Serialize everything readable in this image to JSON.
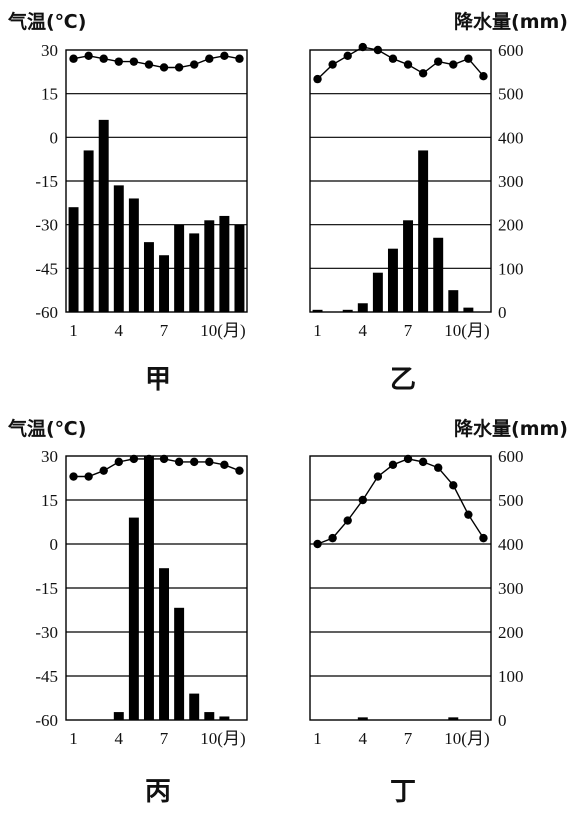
{
  "figure": {
    "left_axis_title": "气温(℃)",
    "right_axis_title": "降水量(mm)",
    "temperature_ticks": [
      "30",
      "15",
      "0",
      "-15",
      "-30",
      "-45",
      "-60"
    ],
    "precipitation_ticks": [
      "600",
      "500",
      "400",
      "300",
      "200",
      "100",
      "0"
    ],
    "month_ticks": [
      "1",
      "4",
      "7",
      "10(月)"
    ]
  },
  "chart_data": [
    {
      "type": "bar",
      "title": "甲",
      "categories": [
        "1",
        "2",
        "3",
        "4",
        "5",
        "6",
        "7",
        "8",
        "9",
        "10",
        "11",
        "12"
      ],
      "temperature_ylim": [
        -60,
        30
      ],
      "precipitation_ylim": [
        0,
        600
      ],
      "temperature": [
        27,
        28,
        27,
        26,
        26,
        25,
        24,
        24,
        25,
        27,
        28,
        27
      ],
      "precipitation": [
        240,
        370,
        440,
        290,
        260,
        160,
        130,
        200,
        180,
        210,
        220,
        200
      ],
      "grid": true
    },
    {
      "type": "bar",
      "title": "乙",
      "categories": [
        "1",
        "2",
        "3",
        "4",
        "5",
        "6",
        "7",
        "8",
        "9",
        "10",
        "11",
        "12"
      ],
      "temperature_ylim": [
        -60,
        30
      ],
      "precipitation_ylim": [
        0,
        600
      ],
      "temperature": [
        20,
        25,
        28,
        31,
        30,
        27,
        25,
        22,
        26,
        25,
        27,
        21
      ],
      "precipitation": [
        5,
        0,
        5,
        20,
        90,
        145,
        210,
        370,
        170,
        50,
        10,
        0
      ],
      "grid": true
    },
    {
      "type": "bar",
      "title": "丙",
      "categories": [
        "1",
        "2",
        "3",
        "4",
        "5",
        "6",
        "7",
        "8",
        "9",
        "10",
        "11",
        "12"
      ],
      "temperature_ylim": [
        -60,
        30
      ],
      "precipitation_ylim": [
        0,
        600
      ],
      "temperature": [
        23,
        23,
        25,
        28,
        29,
        29,
        29,
        28,
        28,
        28,
        27,
        25
      ],
      "precipitation": [
        0,
        0,
        0,
        18,
        460,
        600,
        345,
        255,
        60,
        18,
        8,
        0
      ],
      "grid": true
    },
    {
      "type": "bar",
      "title": "丁",
      "categories": [
        "1",
        "2",
        "3",
        "4",
        "5",
        "6",
        "7",
        "8",
        "9",
        "10",
        "11",
        "12"
      ],
      "temperature_ylim": [
        -60,
        30
      ],
      "precipitation_ylim": [
        0,
        600
      ],
      "temperature": [
        0,
        2,
        8,
        15,
        23,
        27,
        29,
        28,
        26,
        20,
        10,
        2
      ],
      "precipitation": [
        0,
        0,
        0,
        6,
        0,
        0,
        0,
        0,
        0,
        6,
        0,
        0
      ],
      "grid": true
    }
  ]
}
